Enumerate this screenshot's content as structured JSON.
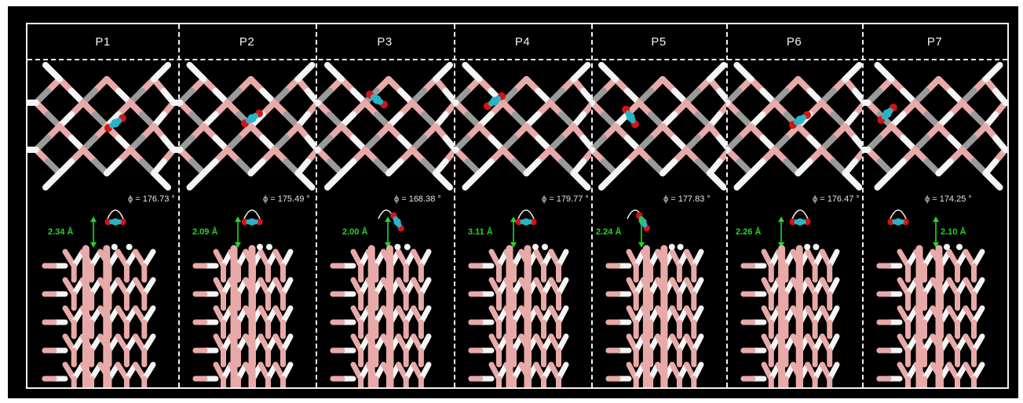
{
  "colors": {
    "background": "#000000",
    "frame": "#f2f2f2",
    "boron": "#e8aaa8",
    "hydrogen": "#f4f4f4",
    "carbon": "#2ab3c7",
    "oxygen": "#d41414",
    "distance_label": "#22d722",
    "angle_label": "#e6e6e6"
  },
  "panels": [
    {
      "label": "P1",
      "angle": "ϕ = 176.73 °",
      "distance": "2.34 Å"
    },
    {
      "label": "P2",
      "angle": "ϕ = 175.49 °",
      "distance": "2.09 Å"
    },
    {
      "label": "P3",
      "angle": "ϕ = 168.38 °",
      "distance": "2.00 Å"
    },
    {
      "label": "P4",
      "angle": "ϕ = 179.77 °",
      "distance": "3.11 Å"
    },
    {
      "label": "P5",
      "angle": "ϕ = 177.83 °",
      "distance": "2.24 Å"
    },
    {
      "label": "P6",
      "angle": "ϕ = 176.47 °",
      "distance": "2.26 Å"
    },
    {
      "label": "P7",
      "angle": "ϕ = 174.25 °",
      "distance": "2.10 Å"
    }
  ]
}
